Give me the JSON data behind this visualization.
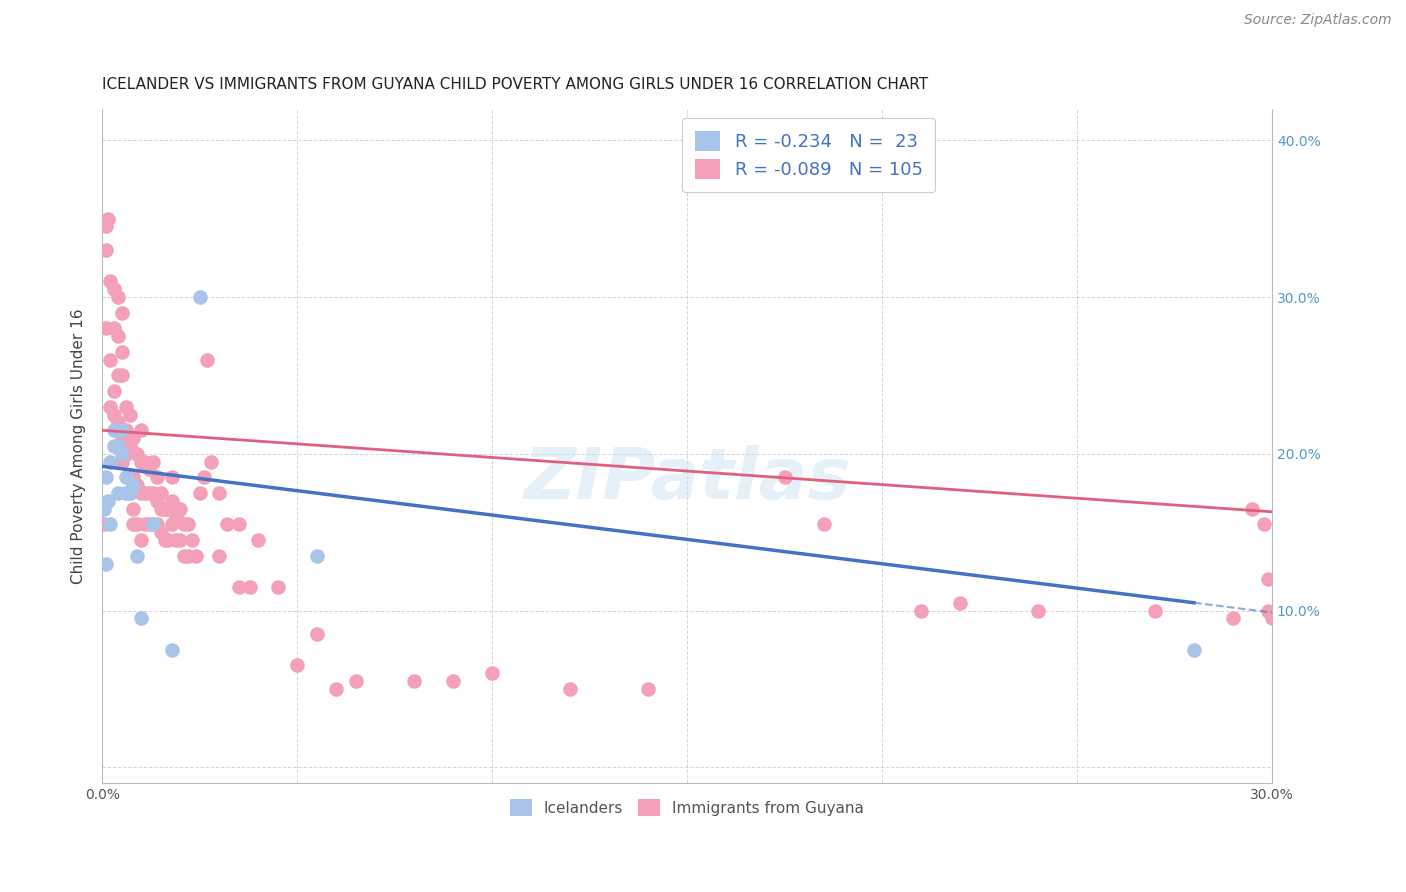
{
  "title": "ICELANDER VS IMMIGRANTS FROM GUYANA CHILD POVERTY AMONG GIRLS UNDER 16 CORRELATION CHART",
  "source": "Source: ZipAtlas.com",
  "ylabel": "Child Poverty Among Girls Under 16",
  "xlim": [
    0.0,
    0.3
  ],
  "ylim": [
    -0.01,
    0.42
  ],
  "background_color": "#ffffff",
  "grid_color": "#cccccc",
  "icelanders_color": "#a8c4e8",
  "guyana_color": "#f4a0b8",
  "icelanders_line_color": "#4472c4",
  "guyana_line_color": "#e06080",
  "watermark_text": "ZIPatlas",
  "icelanders_x": [
    0.0005,
    0.001,
    0.001,
    0.0015,
    0.002,
    0.002,
    0.003,
    0.003,
    0.004,
    0.004,
    0.005,
    0.005,
    0.006,
    0.006,
    0.007,
    0.008,
    0.009,
    0.01,
    0.013,
    0.018,
    0.025,
    0.055,
    0.28
  ],
  "icelanders_y": [
    0.165,
    0.13,
    0.185,
    0.17,
    0.195,
    0.155,
    0.215,
    0.205,
    0.175,
    0.205,
    0.2,
    0.215,
    0.185,
    0.175,
    0.175,
    0.18,
    0.135,
    0.095,
    0.155,
    0.075,
    0.3,
    0.135,
    0.075
  ],
  "guyana_x": [
    0.0005,
    0.001,
    0.001,
    0.001,
    0.0015,
    0.002,
    0.002,
    0.002,
    0.003,
    0.003,
    0.003,
    0.003,
    0.004,
    0.004,
    0.004,
    0.004,
    0.005,
    0.005,
    0.005,
    0.005,
    0.005,
    0.006,
    0.006,
    0.006,
    0.006,
    0.007,
    0.007,
    0.007,
    0.007,
    0.008,
    0.008,
    0.008,
    0.008,
    0.009,
    0.009,
    0.009,
    0.01,
    0.01,
    0.01,
    0.01,
    0.011,
    0.011,
    0.011,
    0.012,
    0.012,
    0.012,
    0.013,
    0.013,
    0.013,
    0.014,
    0.014,
    0.014,
    0.015,
    0.015,
    0.015,
    0.016,
    0.016,
    0.017,
    0.017,
    0.018,
    0.018,
    0.018,
    0.019,
    0.019,
    0.02,
    0.02,
    0.021,
    0.021,
    0.022,
    0.022,
    0.023,
    0.024,
    0.025,
    0.026,
    0.027,
    0.028,
    0.03,
    0.03,
    0.032,
    0.035,
    0.035,
    0.038,
    0.04,
    0.045,
    0.05,
    0.055,
    0.06,
    0.065,
    0.08,
    0.09,
    0.1,
    0.12,
    0.14,
    0.175,
    0.185,
    0.21,
    0.22,
    0.24,
    0.27,
    0.29,
    0.295,
    0.298,
    0.299,
    0.299,
    0.3
  ],
  "guyana_y": [
    0.155,
    0.28,
    0.33,
    0.345,
    0.35,
    0.23,
    0.26,
    0.31,
    0.225,
    0.24,
    0.28,
    0.305,
    0.22,
    0.25,
    0.275,
    0.3,
    0.195,
    0.21,
    0.25,
    0.265,
    0.29,
    0.175,
    0.2,
    0.215,
    0.23,
    0.175,
    0.185,
    0.205,
    0.225,
    0.155,
    0.165,
    0.185,
    0.21,
    0.155,
    0.18,
    0.2,
    0.145,
    0.175,
    0.195,
    0.215,
    0.155,
    0.175,
    0.195,
    0.155,
    0.175,
    0.19,
    0.155,
    0.175,
    0.195,
    0.155,
    0.17,
    0.185,
    0.15,
    0.165,
    0.175,
    0.145,
    0.165,
    0.145,
    0.165,
    0.155,
    0.17,
    0.185,
    0.145,
    0.16,
    0.145,
    0.165,
    0.135,
    0.155,
    0.135,
    0.155,
    0.145,
    0.135,
    0.175,
    0.185,
    0.26,
    0.195,
    0.135,
    0.175,
    0.155,
    0.115,
    0.155,
    0.115,
    0.145,
    0.115,
    0.065,
    0.085,
    0.05,
    0.055,
    0.055,
    0.055,
    0.06,
    0.05,
    0.05,
    0.185,
    0.155,
    0.1,
    0.105,
    0.1,
    0.1,
    0.095,
    0.165,
    0.155,
    0.12,
    0.1,
    0.095
  ],
  "title_fontsize": 11,
  "axis_label_fontsize": 11,
  "tick_fontsize": 10,
  "legend_fontsize": 13,
  "watermark_fontsize": 52,
  "source_fontsize": 10,
  "icelanders_line_x0": 0.0,
  "icelanders_line_y0": 0.192,
  "icelanders_line_x1": 0.28,
  "icelanders_line_y1": 0.105,
  "guyana_line_x0": 0.0,
  "guyana_line_y0": 0.215,
  "guyana_line_x1": 0.3,
  "guyana_line_y1": 0.163
}
